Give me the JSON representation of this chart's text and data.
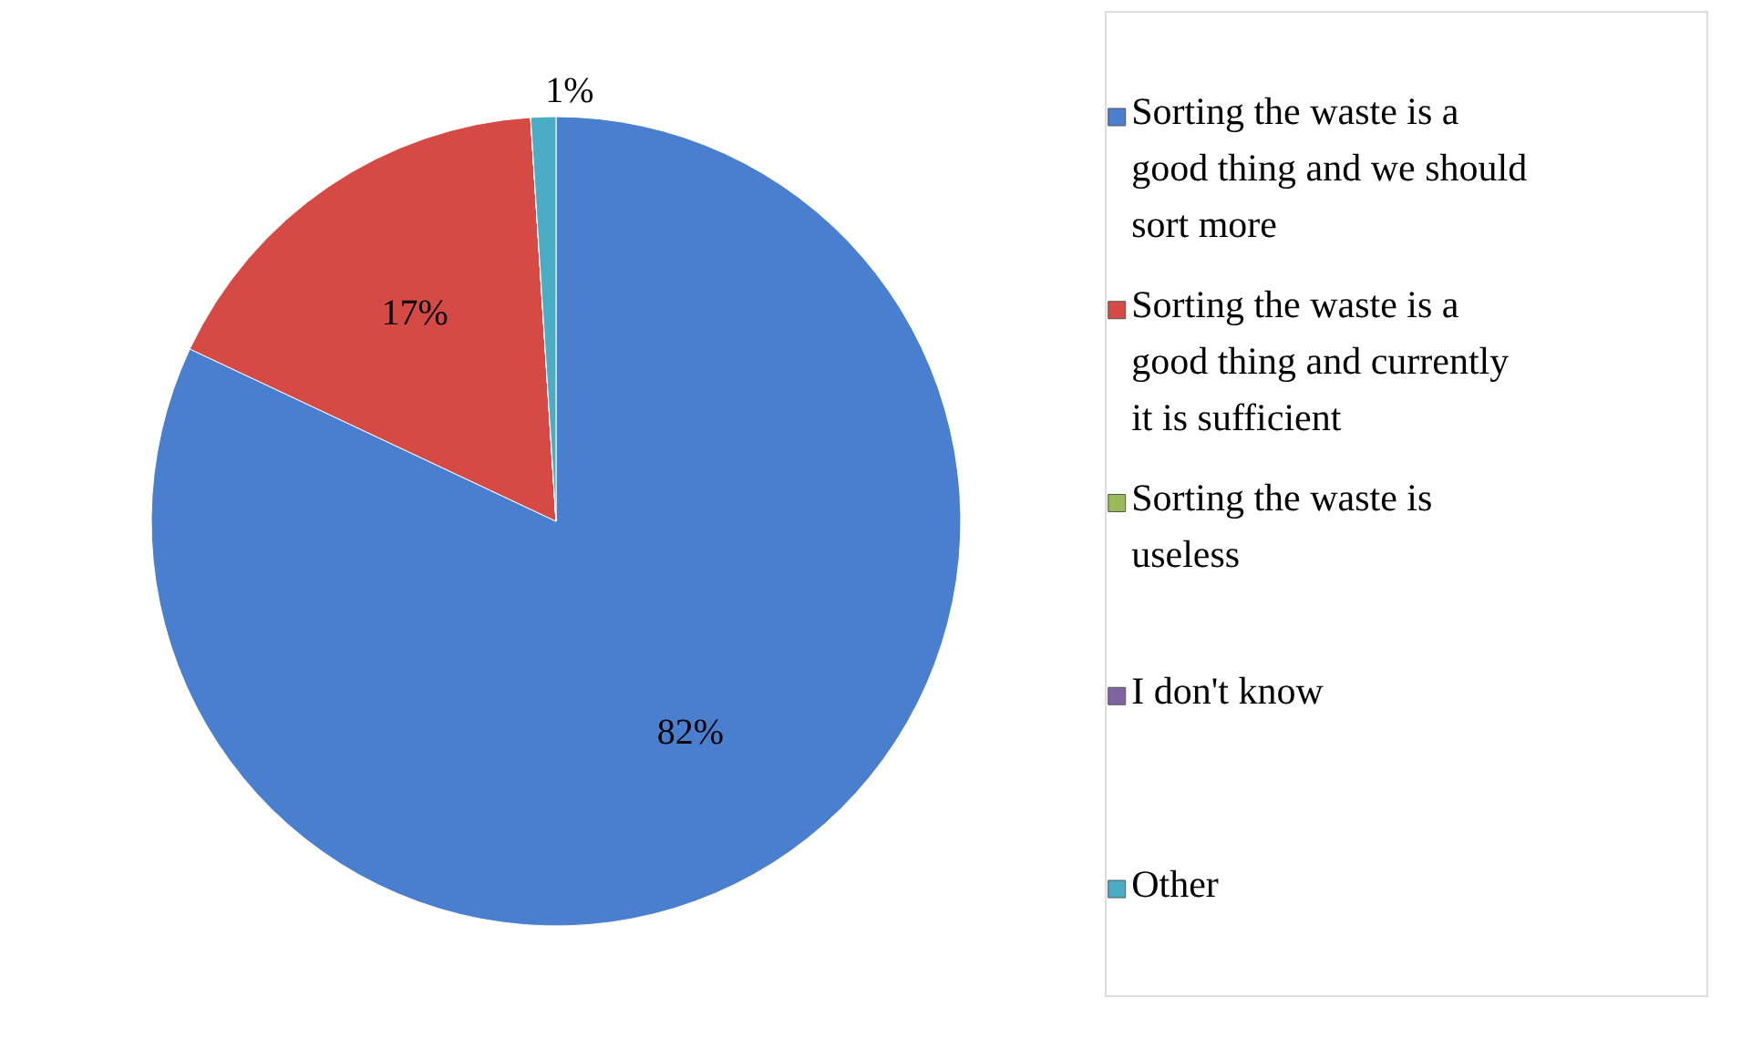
{
  "chart_data": {
    "type": "pie",
    "categories": [
      "Sorting the waste is a good thing and we should sort more",
      "Sorting the waste is a good thing and currently it is sufficient",
      "Sorting the waste is useless",
      "I don't know",
      "Other"
    ],
    "values": [
      82,
      17,
      0,
      0,
      1
    ],
    "colors": [
      "#4a7fd0",
      "#d54a45",
      "#9bbb59",
      "#8064a2",
      "#4bacc6"
    ],
    "value_labels": [
      "82%",
      "17%",
      null,
      null,
      "1%"
    ],
    "legend": "right"
  }
}
